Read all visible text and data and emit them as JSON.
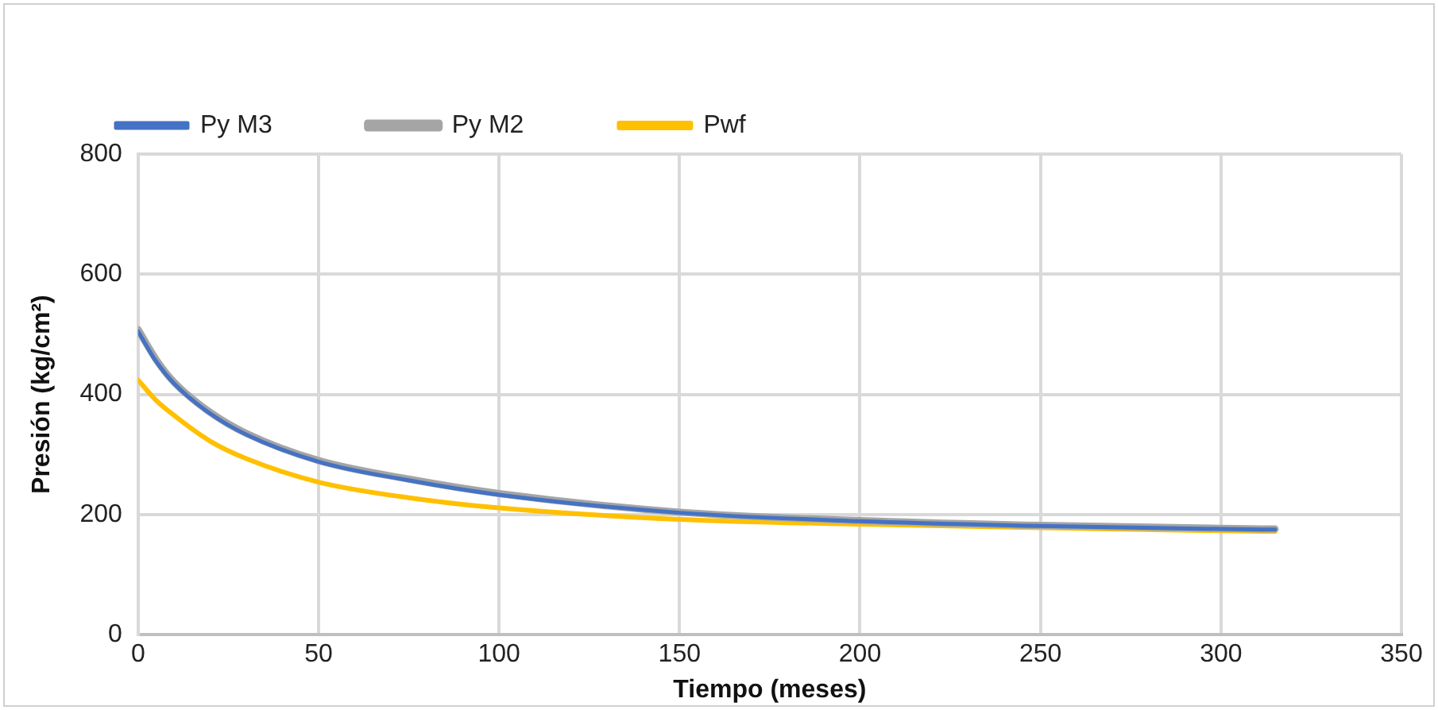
{
  "chart_data": {
    "type": "line",
    "xlabel": "Tiempo (meses)",
    "ylabel": "Presión (kg/cm²)",
    "xlim": [
      0,
      350
    ],
    "xticks": [
      0,
      50,
      100,
      150,
      200,
      250,
      300,
      350
    ],
    "ylim": [
      0,
      800
    ],
    "yticks": [
      0,
      200,
      400,
      600,
      800
    ],
    "grid": true,
    "legend": "top left",
    "marker": "none",
    "line_style": "solid",
    "x": [
      0,
      5,
      10,
      20,
      30,
      50,
      75,
      100,
      150,
      200,
      250,
      300,
      315
    ],
    "series": [
      {
        "name": "Py M3",
        "color": "#4472c4",
        "values": [
          505,
          455,
          418,
          368,
          333,
          288,
          257,
          233,
          203,
          189,
          181,
          176,
          175
        ]
      },
      {
        "name": "Py M2",
        "color": "#a5a5a5",
        "values": [
          508,
          458,
          420,
          370,
          335,
          290,
          259,
          235,
          204,
          190,
          182,
          177,
          176
        ]
      },
      {
        "name": "Pwf",
        "color": "#ffc000",
        "values": [
          424,
          390,
          365,
          322,
          293,
          254,
          228,
          211,
          192,
          184,
          178,
          173,
          172
        ]
      }
    ]
  }
}
